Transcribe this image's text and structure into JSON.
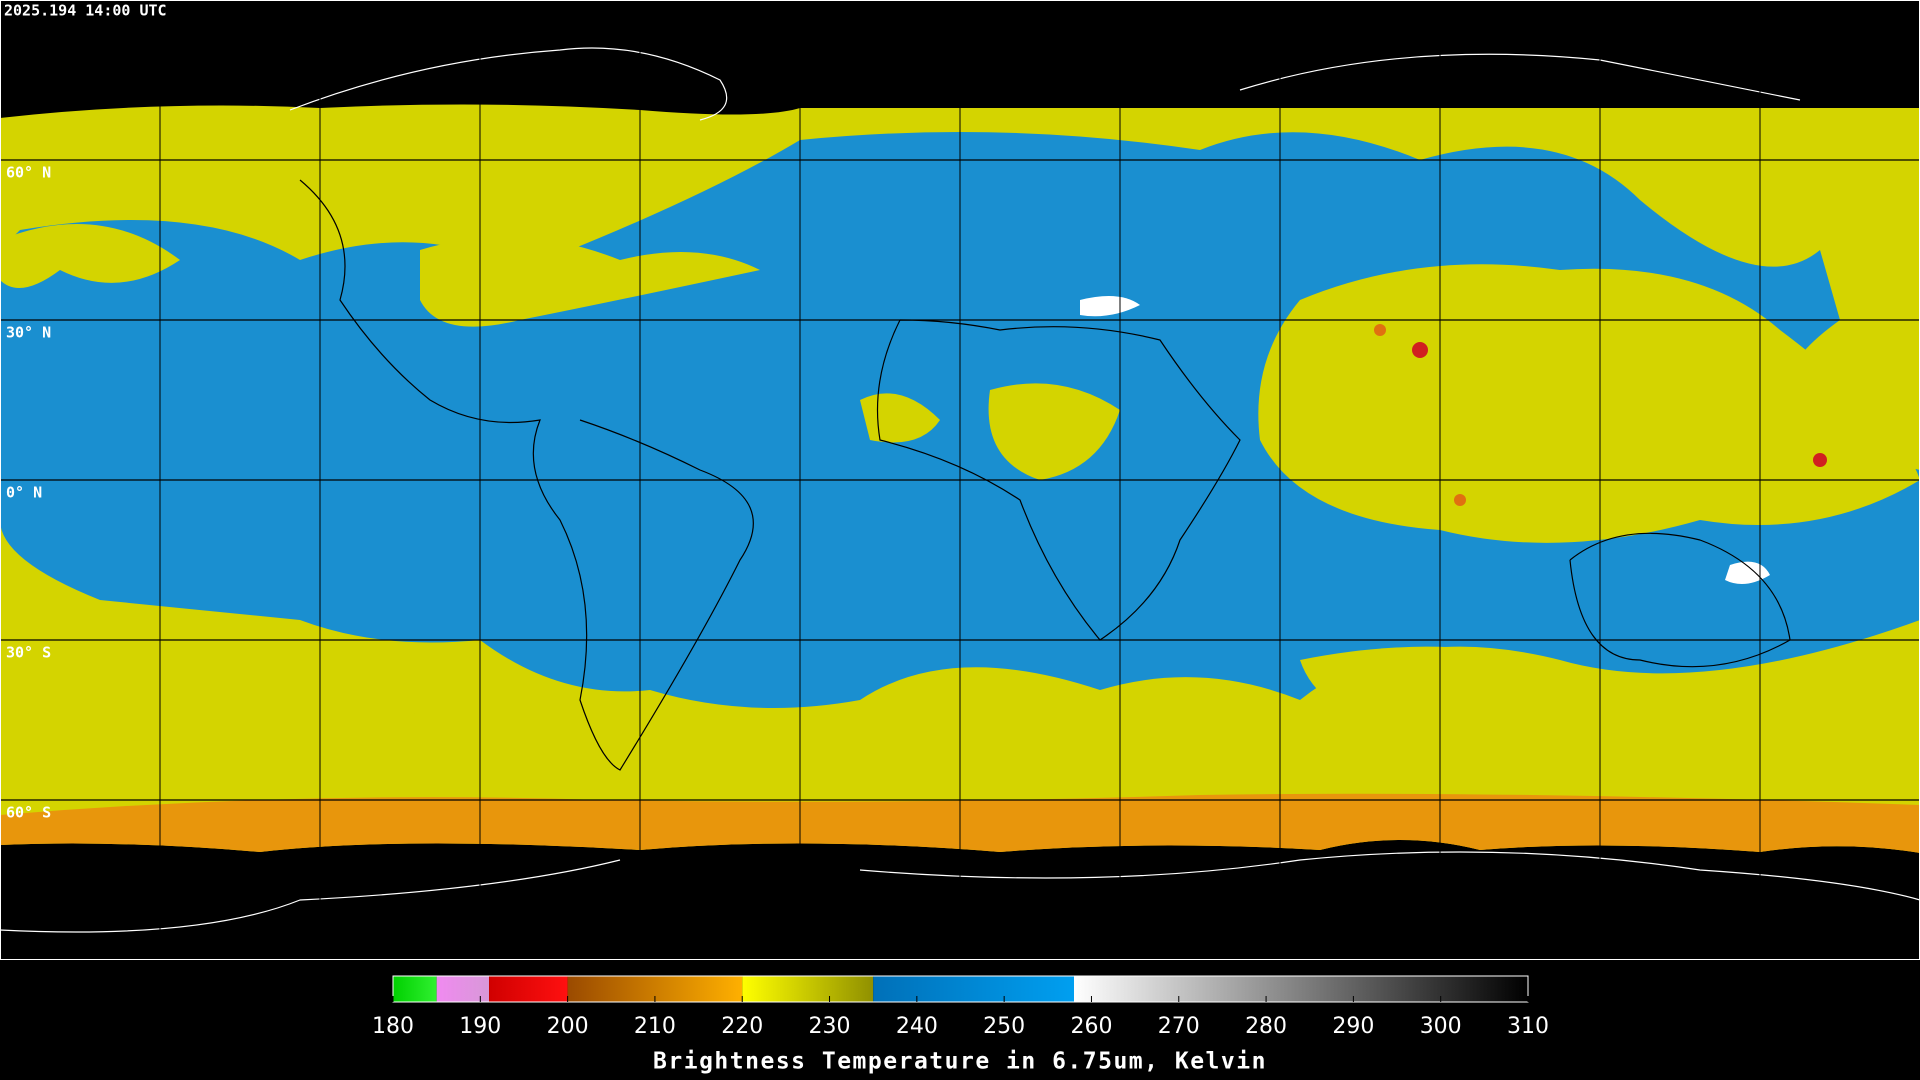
{
  "header": {
    "timestamp": "2025.194 14:00 UTC"
  },
  "map": {
    "latitude_lines": [
      {
        "value": 60,
        "label": "60° N"
      },
      {
        "value": 30,
        "label": "30° N"
      },
      {
        "value": 0,
        "label": "0° N"
      },
      {
        "value": -30,
        "label": "30° S"
      },
      {
        "value": -60,
        "label": "60° S"
      }
    ]
  },
  "colorbar": {
    "title": "Brightness Temperature in 6.75um, Kelvin",
    "range": [
      180,
      310
    ],
    "ticks": [
      180,
      190,
      200,
      210,
      220,
      230,
      240,
      250,
      260,
      270,
      280,
      290,
      300,
      310
    ],
    "segments": [
      {
        "range": [
          180,
          185
        ],
        "colors": [
          "#00d000",
          "#30f030"
        ]
      },
      {
        "range": [
          185,
          191
        ],
        "colors": [
          "#f08af0",
          "#d898d8"
        ]
      },
      {
        "range": [
          191,
          200
        ],
        "colors": [
          "#d00000",
          "#ff1010"
        ]
      },
      {
        "range": [
          200,
          220
        ],
        "colors": [
          "#9a4a00",
          "#ffb000"
        ]
      },
      {
        "range": [
          220,
          235
        ],
        "colors": [
          "#ffff00",
          "#909000"
        ]
      },
      {
        "range": [
          235,
          258
        ],
        "colors": [
          "#0070b8",
          "#009ff0"
        ]
      },
      {
        "range": [
          258,
          310
        ],
        "colors": [
          "#ffffff",
          "#000000"
        ]
      }
    ]
  }
}
